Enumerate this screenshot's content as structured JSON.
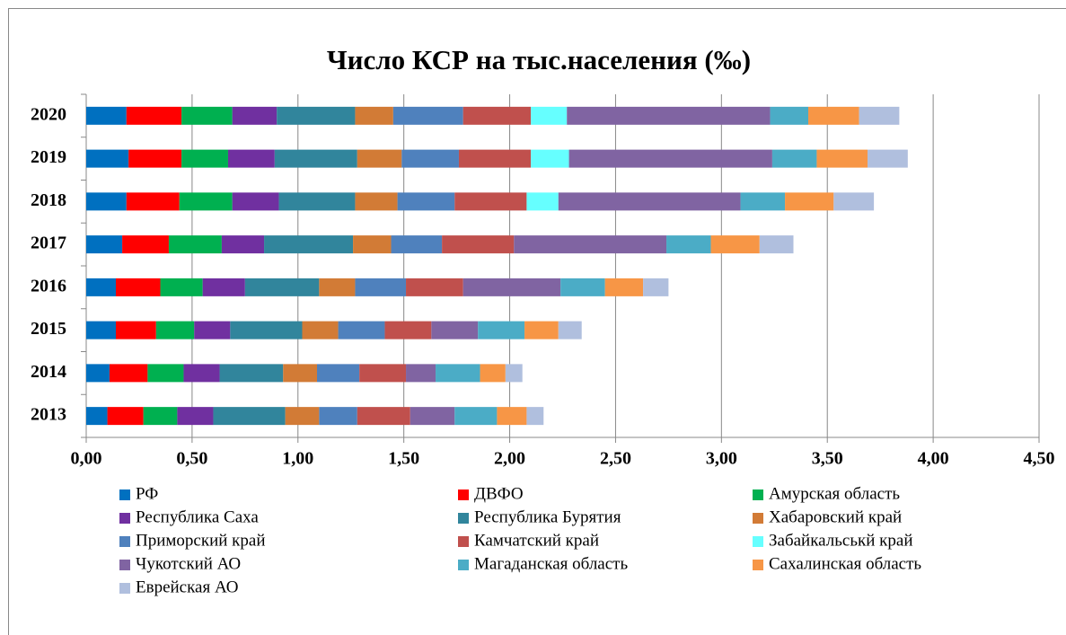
{
  "chart_data": {
    "type": "stacked-barh",
    "title": "Число КСР на тыс.населения (‰)",
    "categories": [
      "2013",
      "2014",
      "2015",
      "2016",
      "2017",
      "2018",
      "2019",
      "2020"
    ],
    "xlim": [
      0,
      4.5
    ],
    "xticks": [
      {
        "value": 0,
        "label": "0,00"
      },
      {
        "value": 0.5,
        "label": "0,50"
      },
      {
        "value": 1,
        "label": "1,00"
      },
      {
        "value": 1.5,
        "label": "1,50"
      },
      {
        "value": 2,
        "label": "2,00"
      },
      {
        "value": 2.5,
        "label": "2,50"
      },
      {
        "value": 3,
        "label": "3,00"
      },
      {
        "value": 3.5,
        "label": "3,50"
      },
      {
        "value": 4,
        "label": "4,00"
      },
      {
        "value": 4.5,
        "label": "4,50"
      }
    ],
    "grid": true,
    "series": [
      {
        "name": "РФ",
        "color": "#0070c0",
        "values": [
          0.1,
          0.11,
          0.14,
          0.14,
          0.17,
          0.19,
          0.2,
          0.19
        ]
      },
      {
        "name": "ДВФО",
        "color": "#ff0000",
        "values": [
          0.17,
          0.18,
          0.19,
          0.21,
          0.22,
          0.25,
          0.25,
          0.26
        ]
      },
      {
        "name": "Амурская область",
        "color": "#00b050",
        "values": [
          0.16,
          0.17,
          0.18,
          0.2,
          0.25,
          0.25,
          0.22,
          0.24
        ]
      },
      {
        "name": "Республика Саха",
        "color": "#7030a0",
        "values": [
          0.17,
          0.17,
          0.17,
          0.2,
          0.2,
          0.22,
          0.22,
          0.21
        ]
      },
      {
        "name": "Республика Бурятия",
        "color": "#31859c",
        "values": [
          0.34,
          0.3,
          0.34,
          0.35,
          0.42,
          0.36,
          0.39,
          0.37
        ]
      },
      {
        "name": "Хабаровский край",
        "color": "#d27b36",
        "values": [
          0.16,
          0.16,
          0.17,
          0.17,
          0.18,
          0.2,
          0.21,
          0.18
        ]
      },
      {
        "name": "Приморский край",
        "color": "#4f81bd",
        "values": [
          0.18,
          0.2,
          0.22,
          0.24,
          0.24,
          0.27,
          0.27,
          0.33
        ]
      },
      {
        "name": "Камчатский край",
        "color": "#c0504d",
        "values": [
          0.25,
          0.22,
          0.22,
          0.27,
          0.34,
          0.34,
          0.34,
          0.32
        ]
      },
      {
        "name": "Забайкальськй край",
        "color": "#66ffff",
        "values": [
          0,
          0,
          0,
          0,
          0,
          0.15,
          0.18,
          0.17
        ]
      },
      {
        "name": "Чукотский АО",
        "color": "#8064a2",
        "values": [
          0.21,
          0.14,
          0.22,
          0.46,
          0.72,
          0.86,
          0.96,
          0.96
        ]
      },
      {
        "name": "Магаданская область",
        "color": "#4bacc6",
        "values": [
          0.2,
          0.21,
          0.22,
          0.21,
          0.21,
          0.21,
          0.21,
          0.18
        ]
      },
      {
        "name": "Сахалинская область",
        "color": "#f79646",
        "values": [
          0.14,
          0.12,
          0.16,
          0.18,
          0.23,
          0.23,
          0.24,
          0.24
        ]
      },
      {
        "name": "Еврейская АО",
        "color": "#b0bfde",
        "values": [
          0.08,
          0.08,
          0.11,
          0.12,
          0.16,
          0.19,
          0.19,
          0.19
        ]
      }
    ]
  }
}
